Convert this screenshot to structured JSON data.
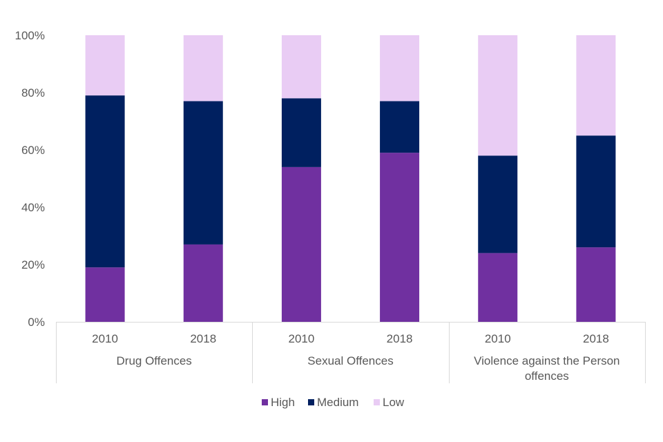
{
  "chart_data": {
    "type": "bar",
    "stacked": true,
    "title": "",
    "xlabel": "",
    "ylabel": "",
    "ylim": [
      0,
      100
    ],
    "y_ticks": [
      "0%",
      "20%",
      "40%",
      "60%",
      "80%",
      "100%"
    ],
    "y_tick_values": [
      0,
      20,
      40,
      60,
      80,
      100
    ],
    "grid": false,
    "legend_position": "bottom",
    "groups": [
      {
        "name": "Drug Offences",
        "name_lines": [
          "Drug Offences"
        ],
        "categories": [
          "2010",
          "2018"
        ]
      },
      {
        "name": "Sexual Offences",
        "name_lines": [
          "Sexual Offences"
        ],
        "categories": [
          "2010",
          "2018"
        ]
      },
      {
        "name": "Violence against the Person offences",
        "name_lines": [
          "Violence against the Person",
          "offences"
        ],
        "categories": [
          "2010",
          "2018"
        ]
      }
    ],
    "categories": [
      "Drug Offences 2010",
      "Drug Offences 2018",
      "Sexual Offences 2010",
      "Sexual Offences 2018",
      "Violence against the Person offences 2010",
      "Violence against the Person offences 2018"
    ],
    "series": [
      {
        "name": "High",
        "color": "#7030a0",
        "values": [
          19,
          27,
          54,
          59,
          24,
          26
        ]
      },
      {
        "name": "Medium",
        "color": "#002060",
        "values": [
          60,
          50,
          24,
          18,
          34,
          39
        ]
      },
      {
        "name": "Low",
        "color": "#e9ccf4",
        "values": [
          21,
          23,
          22,
          23,
          42,
          35
        ]
      }
    ]
  }
}
